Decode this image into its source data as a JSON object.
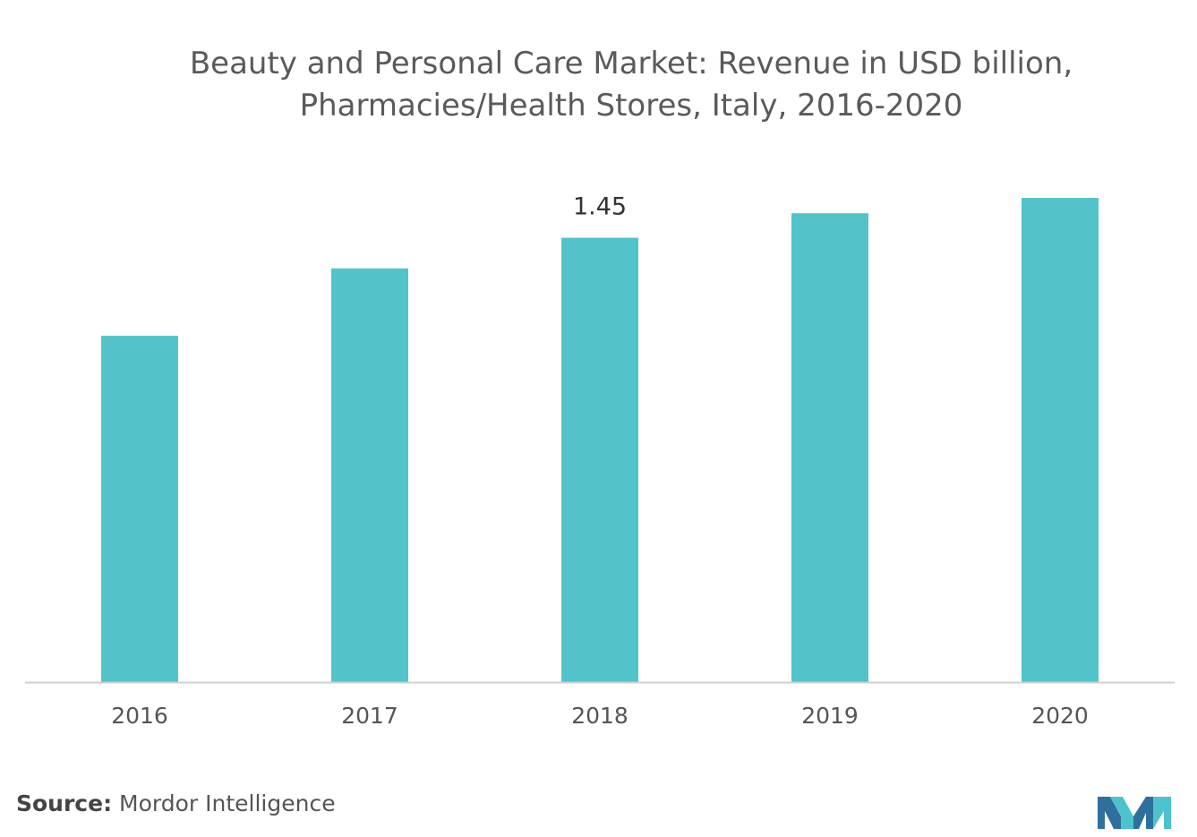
{
  "title_line1": "Beauty and Personal Care Market: Revenue in USD billion,",
  "title_line2": "Pharmacies/Health Stores, Italy, 2016-2020",
  "source_label": "Source:",
  "source_text": " Mordor Intelligence",
  "colors": {
    "bar": "#52c3c9",
    "axis": "#d0d0d0",
    "tick_text": "#555555",
    "label_text": "#333333",
    "logo_dark": "#2e6f9e",
    "logo_light": "#4ec2cc"
  },
  "chart_data": {
    "type": "bar",
    "title": "Beauty and Personal Care Market: Revenue in USD billion, Pharmacies/Health Stores, Italy, 2016-2020",
    "categories": [
      "2016",
      "2017",
      "2018",
      "2019",
      "2020"
    ],
    "values": [
      1.13,
      1.35,
      1.45,
      1.53,
      1.58
    ],
    "data_labels": [
      "",
      "",
      "1.45",
      "",
      ""
    ],
    "ylim": [
      0,
      1.7
    ],
    "grid": false,
    "legend": "none"
  }
}
